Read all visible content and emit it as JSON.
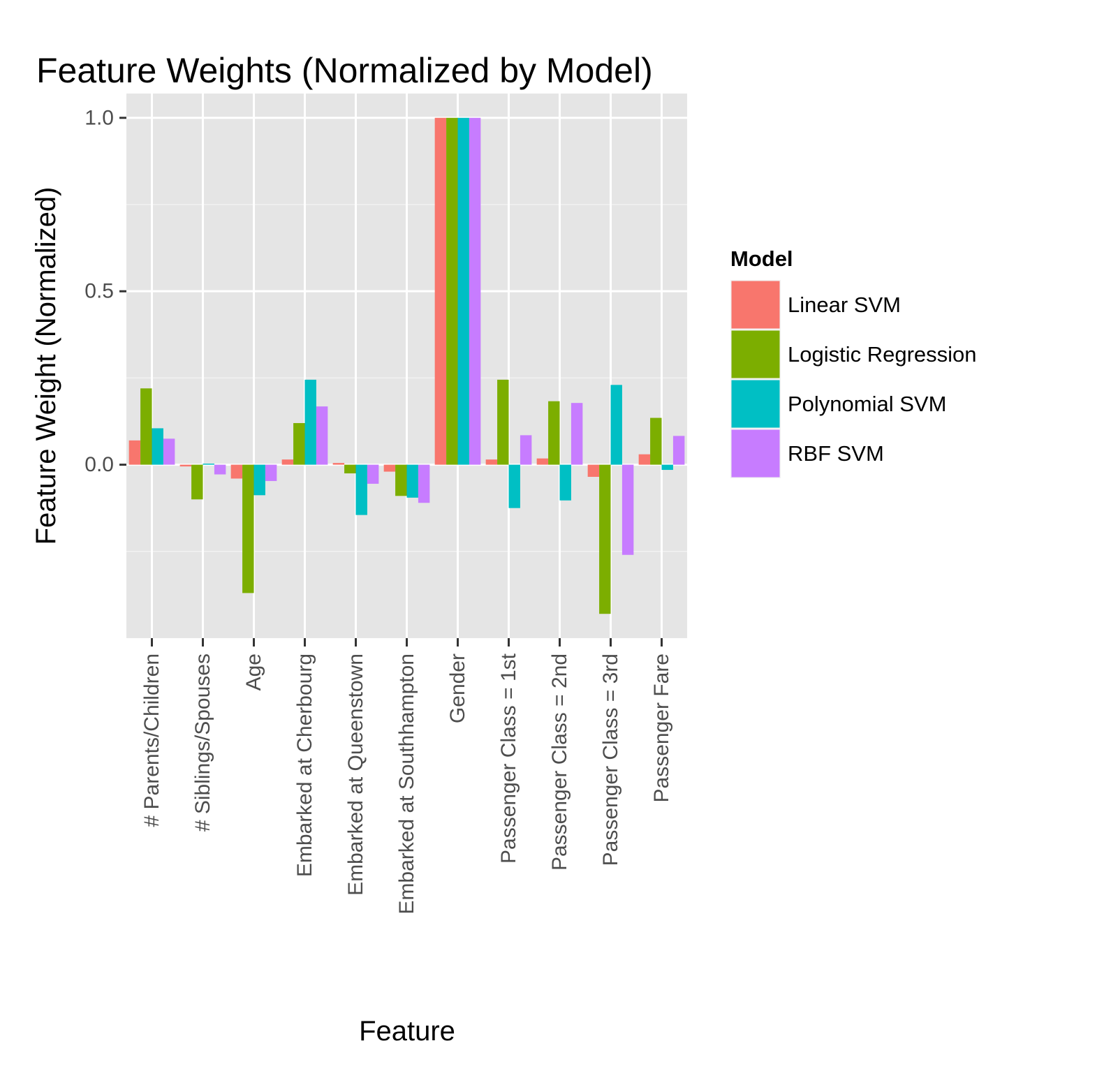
{
  "chart_data": {
    "type": "bar",
    "title": "Feature Weights (Normalized by Model)",
    "xlabel": "Feature",
    "ylabel": "Feature Weight (Normalized)",
    "ylim": [
      -0.5,
      1.07
    ],
    "yticks": [
      {
        "value": 0.0,
        "label": "0.0"
      },
      {
        "value": 0.5,
        "label": "0.5"
      },
      {
        "value": 1.0,
        "label": "1.0"
      }
    ],
    "grid": true,
    "legend_position": "right",
    "legend_title": "Model",
    "categories": [
      "# Parents/Children",
      "# Siblings/Spouses",
      "Age",
      "Embarked at Cherbourg",
      "Embarked at Queenstown",
      "Embarked at Southhampton",
      "Gender",
      "Passenger Class = 1st",
      "Passenger Class = 2nd",
      "Passenger Class = 3rd",
      "Passenger Fare"
    ],
    "series": [
      {
        "name": "Linear SVM",
        "color": "#F8766D",
        "values": [
          0.07,
          -0.005,
          -0.04,
          0.015,
          0.005,
          -0.02,
          1.0,
          0.015,
          0.018,
          -0.035,
          0.03
        ]
      },
      {
        "name": "Logistic Regression",
        "color": "#7CAE00",
        "values": [
          0.22,
          -0.1,
          -0.37,
          0.12,
          -0.025,
          -0.09,
          1.0,
          0.245,
          0.183,
          -0.43,
          0.135
        ]
      },
      {
        "name": "Polynomial SVM",
        "color": "#00BFC4",
        "values": [
          0.105,
          0.003,
          -0.088,
          0.245,
          -0.145,
          -0.095,
          1.0,
          -0.125,
          -0.103,
          0.23,
          -0.015
        ]
      },
      {
        "name": "RBF SVM",
        "color": "#C77CFF",
        "values": [
          0.075,
          -0.028,
          -0.047,
          0.168,
          -0.055,
          -0.11,
          1.0,
          0.085,
          0.178,
          -0.26,
          0.083
        ]
      }
    ]
  }
}
